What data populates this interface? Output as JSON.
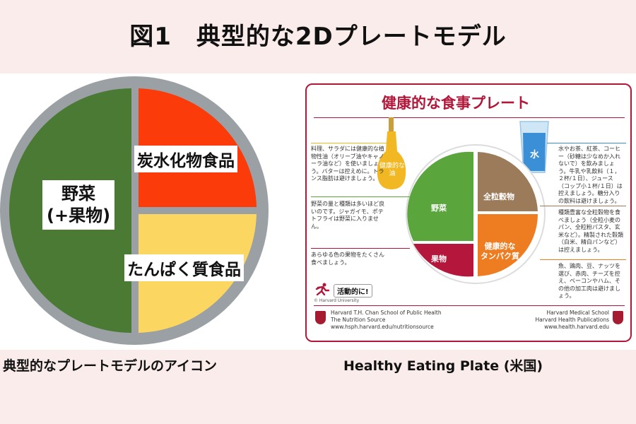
{
  "title": "図1　典型的な2Dプレートモデル",
  "left_plate": {
    "segments": {
      "vegetables": "野菜",
      "vegetables_sub": "(+果物)",
      "carbs": "炭水化物食品",
      "protein": "たんぱく質食品"
    },
    "colors": {
      "vegetables": "#4a7a34",
      "carbs": "#fb3c0a",
      "protein": "#fbd660",
      "rim": "#9aa0a3"
    }
  },
  "right_card": {
    "title": "健康的な食事プレート",
    "oil_label": "健康的な油",
    "water_label": "水",
    "plate_segments": {
      "vegetables": "野菜",
      "grains": "全粒穀物",
      "fruit": "果物",
      "protein_1": "健康的な",
      "protein_2": "タンパク質"
    },
    "left_notes": [
      "料理、サラダには健康的な植物性油（オリーブ油やキャノーラ油など）を使いましょう。バターは控えめに。トランス脂肪は避けましょう。",
      "野菜の量と種類は多いほど良いのです。ジャガイモ、ポテトフライは野菜に入りません。",
      "あらゆる色の果物をたくさん食べましょう。"
    ],
    "right_notes": [
      "水やお茶、紅茶、コーヒー（砂糖は少なめか入れないで）を飲みましょう。牛乳や乳飲料（１，２杯/１日）、ジュース（コップ小１杯/１日）は控えましょう。糖分入りの飲料は避けましょう。",
      "種類豊富な全粒穀物を食べましょう（全粒小麦のパン、全粒粉パスタ、玄米など）。精製された穀類（白米、精白パンなど）は控えましょう。",
      "魚、鶏肉、豆、ナッツを選び、赤肉、チーズを控え、ベーコンやハム、その他の加工肉は避けましょう。"
    ],
    "active_label": "活動的に!",
    "copyright": "© Harvard University",
    "footer_left": [
      "Harvard T.H. Chan School of Public Health",
      "The Nutrition Source",
      "www.hsph.harvard.edu/nutritionsource"
    ],
    "footer_right": [
      "Harvard Medical School",
      "Harvard Health Publications",
      "www.health.harvard.edu"
    ],
    "colors": {
      "accent": "#b2173a",
      "vegetables": "#5aa53c",
      "grains": "#9c7b5b",
      "fruit": "#b5163b",
      "protein": "#ee7d22",
      "oil": "#f2b824",
      "water": "#3a8fd6"
    }
  },
  "captions": {
    "left": "典型的なプレートモデルのアイコン",
    "right": "Healthy Eating Plate (米国)"
  }
}
